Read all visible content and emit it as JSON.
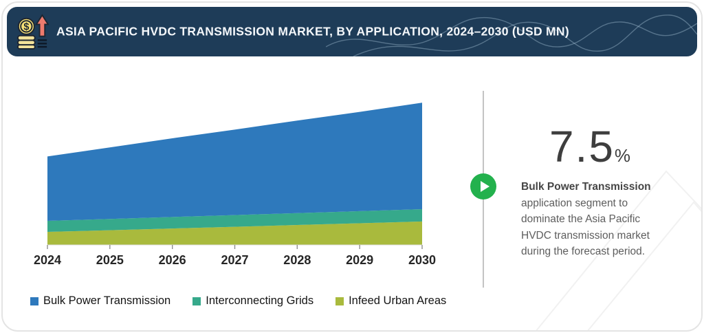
{
  "header": {
    "title": "ASIA PACIFIC HVDC TRANSMISSION MARKET, BY APPLICATION, 2024–2030 (USD MN)"
  },
  "chart_data": {
    "type": "area",
    "stacked": true,
    "title": "Asia Pacific HVDC Transmission Market, by Application, 2024–2030 (USD MN)",
    "categories": [
      "2024",
      "2025",
      "2026",
      "2027",
      "2028",
      "2029",
      "2030"
    ],
    "series": [
      {
        "name": "Bulk Power Transmission",
        "color": "#2e79bc",
        "values": [
          72,
          80,
          88,
          95.5,
          103.5,
          111,
          119
        ]
      },
      {
        "name": "Interconnecting Grids",
        "color": "#36a98b",
        "values": [
          12.3,
          12.5,
          12.8,
          13.1,
          13.3,
          13.6,
          13.8
        ]
      },
      {
        "name": "Infeed Urban Areas",
        "color": "#a9ba3d",
        "values": [
          14.6,
          16.5,
          18.4,
          20.3,
          22.3,
          24.2,
          26.2
        ]
      }
    ],
    "stack_order": "series listed top-to-bottom; Infeed Urban Areas is the bottom band",
    "xlabel": "",
    "ylabel": "",
    "value_axis_visible": false,
    "values_note": "Y axis not labeled in source; values estimated in relative units where 2024 total ≈ 100",
    "legend_position": "bottom-left",
    "grid": false
  },
  "insight": {
    "stat_value": "7.5",
    "stat_unit": "%",
    "highlight": "Bulk Power Transmission",
    "body": "application segment to dominate the Asia Pacific HVDC transmission market during the forecast period."
  },
  "colors": {
    "header_bg": "#1e3c58",
    "accent_green": "#23b14d",
    "diamond_yellow": "#f0af1d",
    "diamond_blue": "#2ca6dd",
    "diamond_red": "#e43644",
    "diamond_green": "#62c162"
  }
}
